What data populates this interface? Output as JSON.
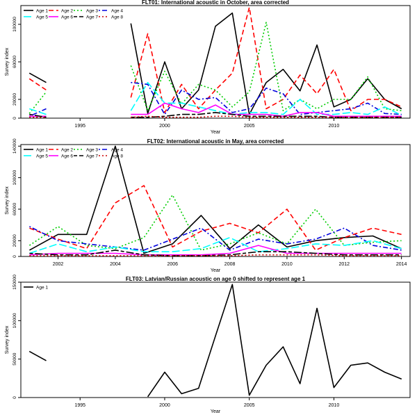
{
  "colors": {
    "Age 1": "#000000",
    "Age 2": "#ff0000",
    "Age 3": "#00cc00",
    "Age 4": "#0000dd",
    "Age 5": "#00ffff",
    "Age 6": "#ff00ff",
    "Age 7": "#000000",
    "Age 8": "#cc0000"
  },
  "chart_data": [
    {
      "type": "line",
      "title": "FLT01:   International acoustic in October, area corrected",
      "xlabel": "Year",
      "ylabel": "Survey index",
      "xlim": [
        1991.5,
        2014.5
      ],
      "ylim": [
        0,
        120000
      ],
      "x_ticks": [
        1995,
        2000,
        2005,
        2010
      ],
      "y_ticks": [
        0,
        20000,
        60000,
        100000
      ],
      "grid": false,
      "legend_position": "top-left",
      "legend_columns": 4,
      "x": [
        1992,
        1993,
        1994,
        1995,
        1996,
        1997,
        1998,
        1999,
        2000,
        2001,
        2002,
        2003,
        2004,
        2005,
        2006,
        2007,
        2008,
        2009,
        2010,
        2011,
        2012,
        2013,
        2014
      ],
      "series": [
        {
          "name": "Age 1",
          "style": "solid",
          "values": [
            48000,
            38000,
            null,
            null,
            null,
            null,
            101000,
            5000,
            60000,
            10000,
            30000,
            98000,
            112000,
            4000,
            38000,
            52000,
            29000,
            78000,
            12000,
            20000,
            42000,
            20000,
            10000
          ]
        },
        {
          "name": "Age 2",
          "style": "dashed",
          "values": [
            42000,
            30000,
            null,
            null,
            null,
            null,
            22000,
            90000,
            6000,
            36000,
            10000,
            30000,
            48000,
            118000,
            10000,
            20000,
            46000,
            26000,
            52000,
            8000,
            20000,
            20000,
            12000
          ]
        },
        {
          "name": "Age 3",
          "style": "dotted",
          "values": [
            5000,
            28000,
            null,
            null,
            null,
            null,
            56000,
            8000,
            50000,
            15000,
            36000,
            30000,
            12000,
            28000,
            102000,
            8000,
            20000,
            10000,
            20000,
            20000,
            44000,
            10000,
            8000
          ]
        },
        {
          "name": "Age 4",
          "style": "dotdash",
          "values": [
            2000,
            10000,
            null,
            null,
            null,
            null,
            38000,
            36000,
            4000,
            30000,
            20000,
            22000,
            6000,
            10000,
            32000,
            26000,
            4000,
            6000,
            8000,
            10000,
            16000,
            5000,
            4000
          ]
        },
        {
          "name": "Age 5",
          "style": "longdash",
          "values": [
            10000,
            4000,
            null,
            null,
            null,
            null,
            8000,
            38000,
            16000,
            16000,
            12000,
            8000,
            4000,
            6000,
            6000,
            4000,
            20000,
            4000,
            4000,
            6000,
            4000,
            12000,
            3000
          ]
        },
        {
          "name": "Age 6",
          "style": "solid",
          "values": [
            2000,
            2000,
            null,
            null,
            null,
            null,
            4000,
            4000,
            16000,
            10000,
            6000,
            14000,
            4000,
            4000,
            4000,
            2000,
            6000,
            6000,
            2000,
            2000,
            2000,
            2000,
            2000
          ]
        },
        {
          "name": "Age 7",
          "style": "twodash",
          "values": [
            4000,
            1000,
            null,
            null,
            null,
            null,
            1000,
            1000,
            2000,
            4000,
            4000,
            6000,
            4000,
            2000,
            2000,
            2000,
            2000,
            2000,
            1000,
            1000,
            1000,
            1000,
            1000
          ]
        },
        {
          "name": "Age 8",
          "style": "dotted",
          "values": [
            1000,
            1000,
            null,
            null,
            null,
            null,
            1000,
            2000,
            1000,
            1000,
            1000,
            2000,
            2000,
            1000,
            1000,
            1000,
            1000,
            1000,
            1000,
            1000,
            1000,
            1000,
            1000
          ]
        }
      ]
    },
    {
      "type": "line",
      "title": "FLT02: International acoustic in May, area corrected",
      "xlabel": "Year",
      "ylabel": "Survey index",
      "xlim": [
        2000.7,
        2014.3
      ],
      "ylim": [
        0,
        142000
      ],
      "x_ticks": [
        2002,
        2004,
        2006,
        2008,
        2010,
        2012,
        2014
      ],
      "y_ticks": [
        0,
        20000,
        60000,
        100000,
        140000
      ],
      "grid": false,
      "legend_position": "top-left",
      "legend_columns": 4,
      "x": [
        2001,
        2002,
        2003,
        2004,
        2005,
        2006,
        2007,
        2008,
        2009,
        2010,
        2011,
        2012,
        2013,
        2014
      ],
      "series": [
        {
          "name": "Age 1",
          "style": "solid",
          "values": [
            8000,
            28000,
            28000,
            140000,
            4000,
            16000,
            52000,
            10000,
            40000,
            12000,
            20000,
            24000,
            26000,
            10000
          ]
        },
        {
          "name": "Age 2",
          "style": "dashed",
          "values": [
            36000,
            22000,
            10000,
            68000,
            90000,
            12000,
            32000,
            42000,
            30000,
            60000,
            8000,
            24000,
            36000,
            28000
          ]
        },
        {
          "name": "Age 3",
          "style": "dotted",
          "values": [
            14000,
            38000,
            14000,
            10000,
            24000,
            78000,
            8000,
            16000,
            30000,
            16000,
            60000,
            14000,
            18000,
            20000
          ]
        },
        {
          "name": "Age 4",
          "style": "dotdash",
          "values": [
            38000,
            20000,
            16000,
            12000,
            8000,
            22000,
            36000,
            8000,
            22000,
            16000,
            22000,
            36000,
            14000,
            8000
          ]
        },
        {
          "name": "Age 5",
          "style": "longdash",
          "values": [
            4000,
            16000,
            6000,
            12000,
            6000,
            6000,
            10000,
            24000,
            6000,
            10000,
            16000,
            14000,
            20000,
            10000
          ]
        },
        {
          "name": "Age 6",
          "style": "solid",
          "values": [
            2000,
            4000,
            4000,
            4000,
            2000,
            2000,
            2000,
            4000,
            14000,
            4000,
            4000,
            4000,
            4000,
            4000
          ]
        },
        {
          "name": "Age 7",
          "style": "twodash",
          "values": [
            4000,
            2000,
            2000,
            8000,
            2000,
            1000,
            1000,
            2000,
            6000,
            6000,
            4000,
            2000,
            2000,
            2000
          ]
        },
        {
          "name": "Age 8",
          "style": "dotted",
          "values": [
            1000,
            1000,
            1000,
            1000,
            1000,
            1000,
            1000,
            1000,
            2000,
            2000,
            2000,
            1000,
            1000,
            1000
          ]
        }
      ]
    },
    {
      "type": "line",
      "title": "FLT03: Latvian/Russian acoustic on age 0 shifted to represent age 1",
      "xlabel": "Year",
      "ylabel": "Survey index",
      "xlim": [
        1991.5,
        2014.5
      ],
      "ylim": [
        0,
        150000
      ],
      "x_ticks": [
        1995,
        2000,
        2005,
        2010
      ],
      "y_ticks": [
        0,
        50000,
        100000,
        150000
      ],
      "grid": false,
      "legend_position": "top-left",
      "legend_columns": 1,
      "x": [
        1992,
        1993,
        1994,
        1995,
        1996,
        1997,
        1998,
        1999,
        2000,
        2001,
        2002,
        2003,
        2004,
        2005,
        2006,
        2007,
        2008,
        2009,
        2010,
        2011,
        2012,
        2013,
        2014
      ],
      "series": [
        {
          "name": "Age 1",
          "style": "solid",
          "values": [
            60000,
            48000,
            null,
            null,
            null,
            null,
            null,
            1000,
            33000,
            5000,
            12000,
            80000,
            147000,
            3000,
            42000,
            66000,
            18000,
            116000,
            13000,
            42000,
            45000,
            33000,
            24000
          ]
        }
      ]
    }
  ]
}
